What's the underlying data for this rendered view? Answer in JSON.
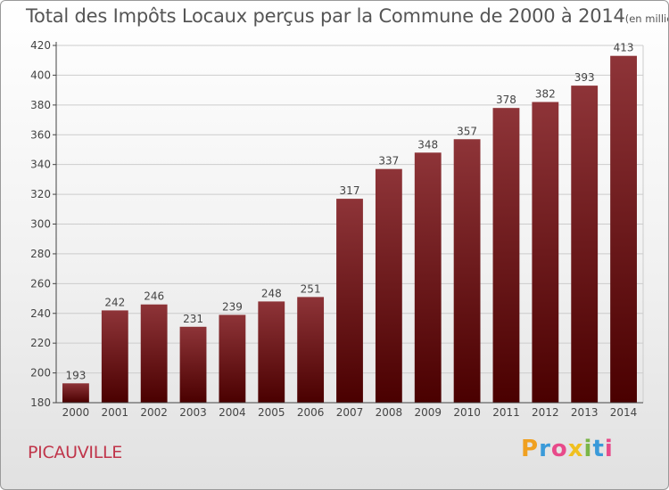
{
  "header": {
    "title": "Total des Impôts Locaux perçus par la Commune de 2000 à 2014",
    "unit": "(en milliers d'€)"
  },
  "footer": {
    "commune": "PICAUVILLE",
    "brand_letters": [
      "P",
      "r",
      "o",
      "x",
      "i",
      "t",
      "i"
    ],
    "brand_colors": [
      "#f0a020",
      "#3a9ad9",
      "#e84a8a",
      "#f0c020",
      "#7ab648",
      "#3a9ad9",
      "#e84a8a"
    ]
  },
  "colors": {
    "bar_top": "#8e3438",
    "bar_bottom": "#4a0000",
    "grid": "#cccccc",
    "axis": "#444444",
    "text": "#444444"
  },
  "chart_data": {
    "type": "bar",
    "title": "Total des Impôts Locaux perçus par la Commune de 2000 à 2014",
    "xlabel": "",
    "ylabel": "",
    "categories": [
      "2000",
      "2001",
      "2002",
      "2003",
      "2004",
      "2005",
      "2006",
      "2007",
      "2008",
      "2009",
      "2010",
      "2011",
      "2012",
      "2013",
      "2014"
    ],
    "values": [
      193,
      242,
      246,
      231,
      239,
      248,
      251,
      317,
      337,
      348,
      357,
      378,
      382,
      393,
      413
    ],
    "ylim": [
      180,
      420
    ],
    "yticks": [
      180,
      200,
      220,
      240,
      260,
      280,
      300,
      320,
      340,
      360,
      380,
      400,
      420
    ],
    "grid": true
  }
}
